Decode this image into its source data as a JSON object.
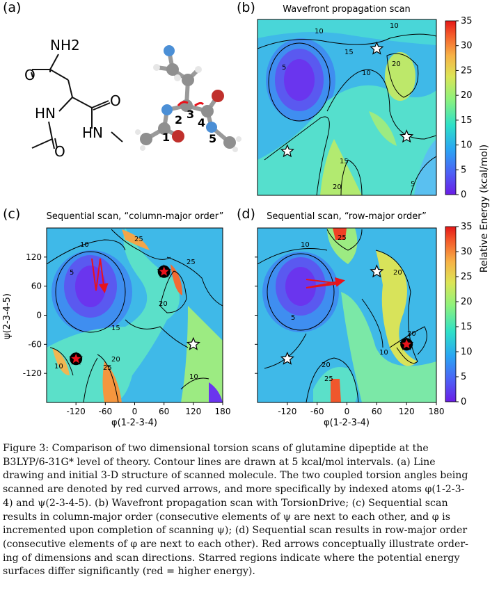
{
  "panels": {
    "a": {
      "label": "(a)",
      "atom_labels": [
        "1",
        "2",
        "3",
        "4",
        "5"
      ],
      "groups": [
        "NH2",
        "HN",
        "O",
        "O",
        "HN",
        "O"
      ]
    },
    "b": {
      "label": "(b)",
      "title": "Wavefront propagation scan"
    },
    "c": {
      "label": "(c)",
      "title": "Sequential scan, “column-major order”"
    },
    "d": {
      "label": "(d)",
      "title": "Sequential scan, “row-major order”"
    }
  },
  "axes": {
    "xlabel": "φ(1-2-3-4)",
    "ylabel": "ψ(2-3-4-5)",
    "xticks": [
      "-120",
      "-60",
      "0",
      "60",
      "120",
      "180"
    ],
    "yticks": [
      "120",
      "60",
      "0",
      "-60",
      "-120"
    ]
  },
  "colorbar": {
    "label": "Relative Energy (kcal/mol)",
    "ticks": [
      "0",
      "5",
      "10",
      "15",
      "20",
      "25",
      "30",
      "35"
    ]
  },
  "contour_labels": [
    "5",
    "10",
    "15",
    "20",
    "25"
  ],
  "chart_data": [
    {
      "type": "heatmap",
      "panel": "b",
      "title": "Wavefront propagation scan",
      "xlim": [
        -180,
        180
      ],
      "ylim": [
        -180,
        180
      ],
      "zlim": [
        0,
        35
      ],
      "contour_interval": 5,
      "stars": [
        {
          "x": 60,
          "y": 120,
          "color": "white"
        },
        {
          "x": 120,
          "y": -60,
          "color": "white"
        },
        {
          "x": -120,
          "y": -90,
          "color": "white"
        }
      ]
    },
    {
      "type": "heatmap",
      "panel": "c",
      "title": "Sequential scan, “column-major order”",
      "xlim": [
        -180,
        180
      ],
      "ylim": [
        -180,
        180
      ],
      "zlim": [
        0,
        35
      ],
      "contour_interval": 5,
      "stars": [
        {
          "x": 60,
          "y": 90,
          "color": "red"
        },
        {
          "x": 120,
          "y": -60,
          "color": "white"
        },
        {
          "x": -120,
          "y": -90,
          "color": "red"
        }
      ]
    },
    {
      "type": "heatmap",
      "panel": "d",
      "title": "Sequential scan, “row-major order”",
      "xlim": [
        -180,
        180
      ],
      "ylim": [
        -180,
        180
      ],
      "zlim": [
        0,
        35
      ],
      "contour_interval": 5,
      "stars": [
        {
          "x": 60,
          "y": 90,
          "color": "white"
        },
        {
          "x": 120,
          "y": -60,
          "color": "red"
        },
        {
          "x": -120,
          "y": -90,
          "color": "white"
        }
      ]
    }
  ],
  "caption": [
    "Figure 3:  Comparison of two dimensional torsion scans of glutamine dipeptide at the",
    "B3LYP/6-31G* level of theory.  Contour lines are drawn at 5 kcal/mol intervals.  (a) Line",
    "drawing and initial 3-D structure of scanned molecule.  The two coupled torsion angles being",
    "scanned are denoted by red curved arrows, and more specifically by indexed atoms φ(1-2-3-",
    "4) and ψ(2-3-4-5).  (b) Wavefront propagation scan with TorsionDrive; (c) Sequential scan",
    "results in column-major order (consecutive elements of ψ are next to each other, and φ is",
    "incremented upon completion of scanning ψ); (d) Sequential scan results in row-major order",
    "(consecutive elements of φ are next to each other).  Red arrows conceptually illustrate order-",
    "ing of dimensions and scan directions.  Starred regions indicate where the potential energy",
    "surfaces differ significantly (red = higher energy)."
  ],
  "colors": {
    "star_red": "#e8131b",
    "arrow_red": "#e8131b",
    "contour": "#000000"
  }
}
